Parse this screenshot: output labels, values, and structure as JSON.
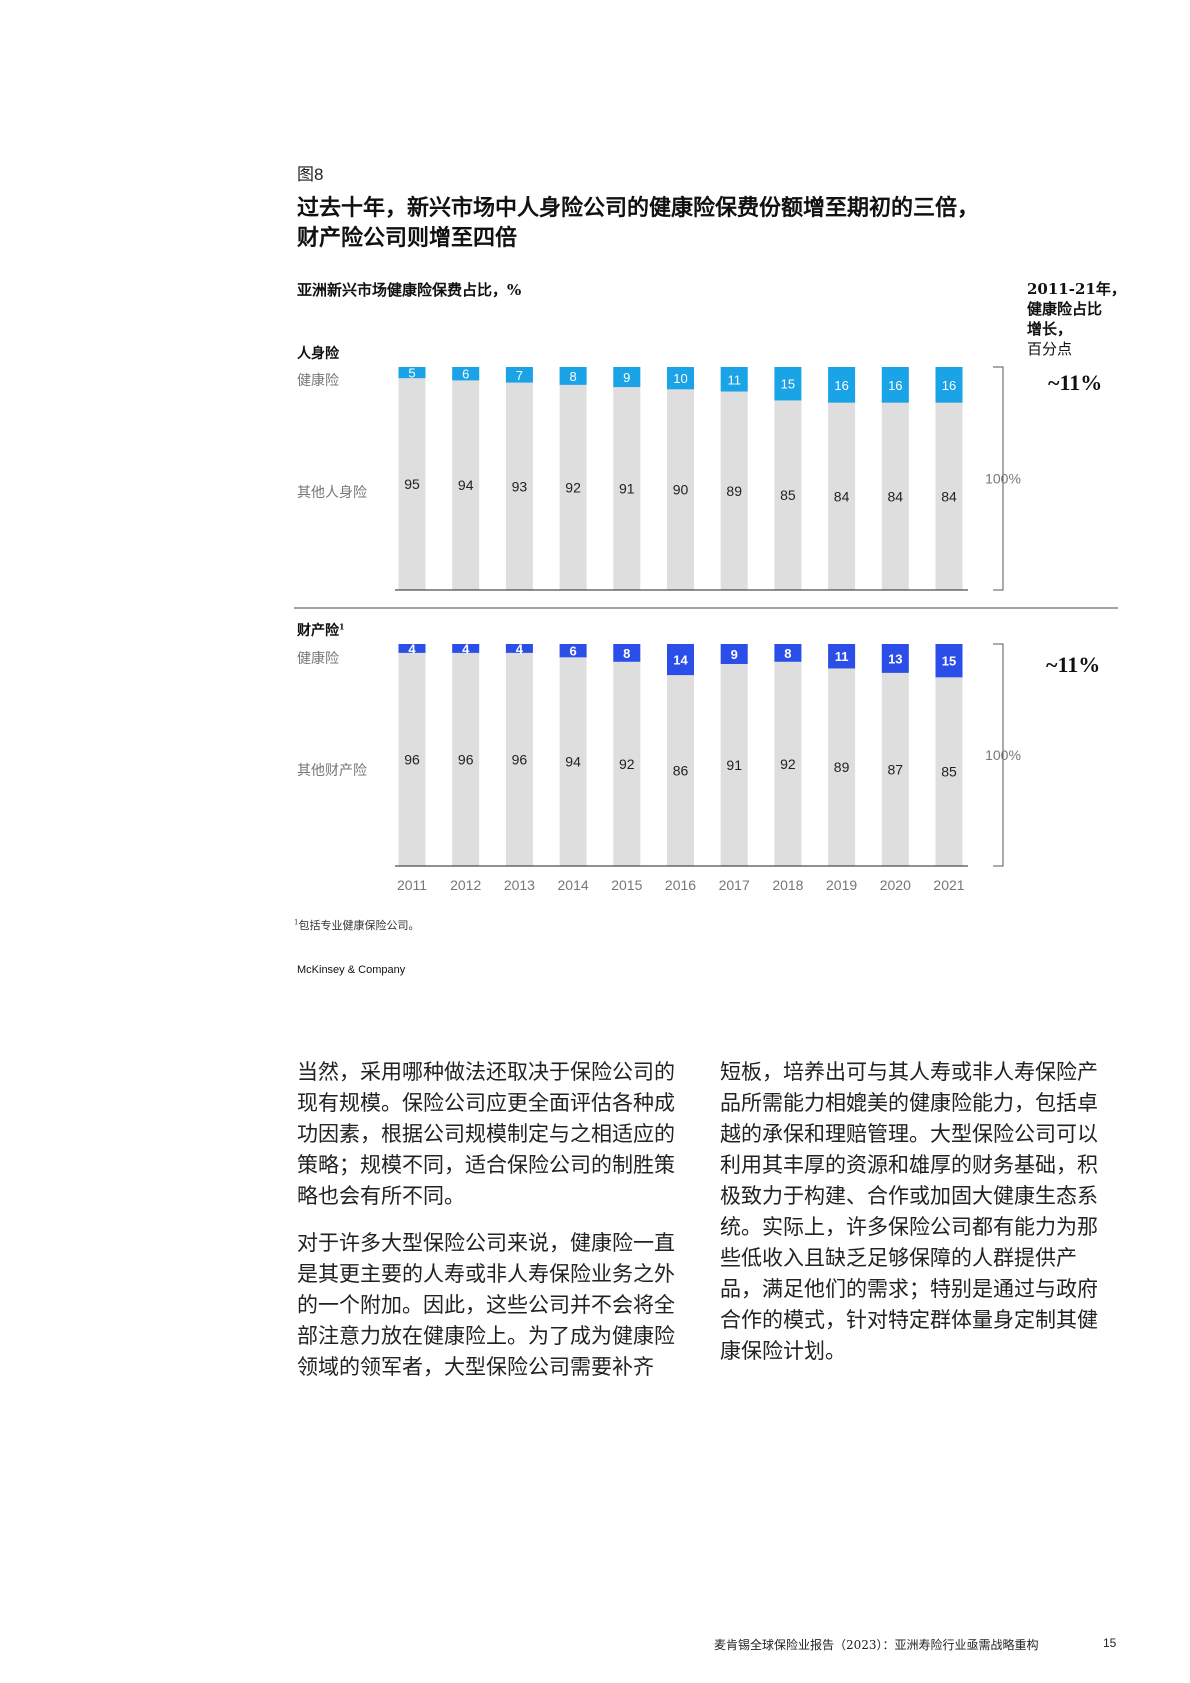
{
  "figure": {
    "label": "图8",
    "title_lines": [
      "过去十年，新兴市场中人身险公司的健康险保费份额增至期初的三倍，",
      "财产险公司则增至四倍"
    ]
  },
  "chart_data": {
    "type": "bar",
    "title": "亚洲新兴市场健康险保费占比，%",
    "categories": [
      "2011",
      "2012",
      "2013",
      "2014",
      "2015",
      "2016",
      "2017",
      "2018",
      "2019",
      "2020",
      "2021"
    ],
    "stacked": true,
    "ylim": [
      0,
      100
    ],
    "total_label": "100%",
    "growth_header": [
      "2011-21年，",
      "健康险占比",
      "增长，"
    ],
    "growth_unit": "百分点",
    "colors": {
      "life_health": "#1aa3e6",
      "pc_health": "#2b4de8",
      "other": "#dedede",
      "bracket": "#555555"
    },
    "panels": [
      {
        "title": "人身险",
        "title_sup": "",
        "growth": "~11%",
        "series": [
          {
            "name": "健康险",
            "values": [
              5,
              6,
              7,
              8,
              9,
              10,
              11,
              15,
              16,
              16,
              16
            ]
          },
          {
            "name": "其他人身险",
            "values": [
              95,
              94,
              93,
              92,
              91,
              90,
              89,
              85,
              84,
              84,
              84
            ]
          }
        ]
      },
      {
        "title": "财产险",
        "title_sup": "1",
        "growth": "~11%",
        "series": [
          {
            "name": "健康险",
            "values": [
              4,
              4,
              4,
              6,
              8,
              14,
              9,
              8,
              11,
              13,
              15
            ]
          },
          {
            "name": "其他财产险",
            "values": [
              96,
              96,
              96,
              94,
              92,
              86,
              91,
              92,
              89,
              87,
              85
            ]
          }
        ]
      }
    ]
  },
  "footnote": {
    "sup": "1",
    "text": "包括专业健康保险公司。"
  },
  "brand": "McKinsey & Company",
  "body": {
    "left": [
      "当然，采用哪种做法还取决于保险公司的现有规模。保险公司应更全面评估各种成功因素，根据公司规模制定与之相适应的策略；规模不同，适合保险公司的制胜策略也会有所不同。",
      "对于许多大型保险公司来说，健康险一直是其更主要的人寿或非人寿保险业务之外的一个附加。因此，这些公司并不会将全部注意力放在健康险上。为了成为健康险领域的领军者，大型保险公司需要补齐"
    ],
    "right": [
      "短板，培养出可与其人寿或非人寿保险产品所需能力相媲美的健康险能力，包括卓越的承保和理赔管理。大型保险公司可以利用其丰厚的资源和雄厚的财务基础，积极致力于构建、合作或加固大健康生态系统。实际上，许多保险公司都有能力为那些低收入且缺乏足够保障的人群提供产品，满足他们的需求；特别是通过与政府合作的模式，针对特定群体量身定制其健康保险计划。"
    ]
  },
  "footer": {
    "report": "麦肯锡全球保险业报告（2023）：亚洲寿险行业亟需战略重构",
    "page": "15"
  }
}
